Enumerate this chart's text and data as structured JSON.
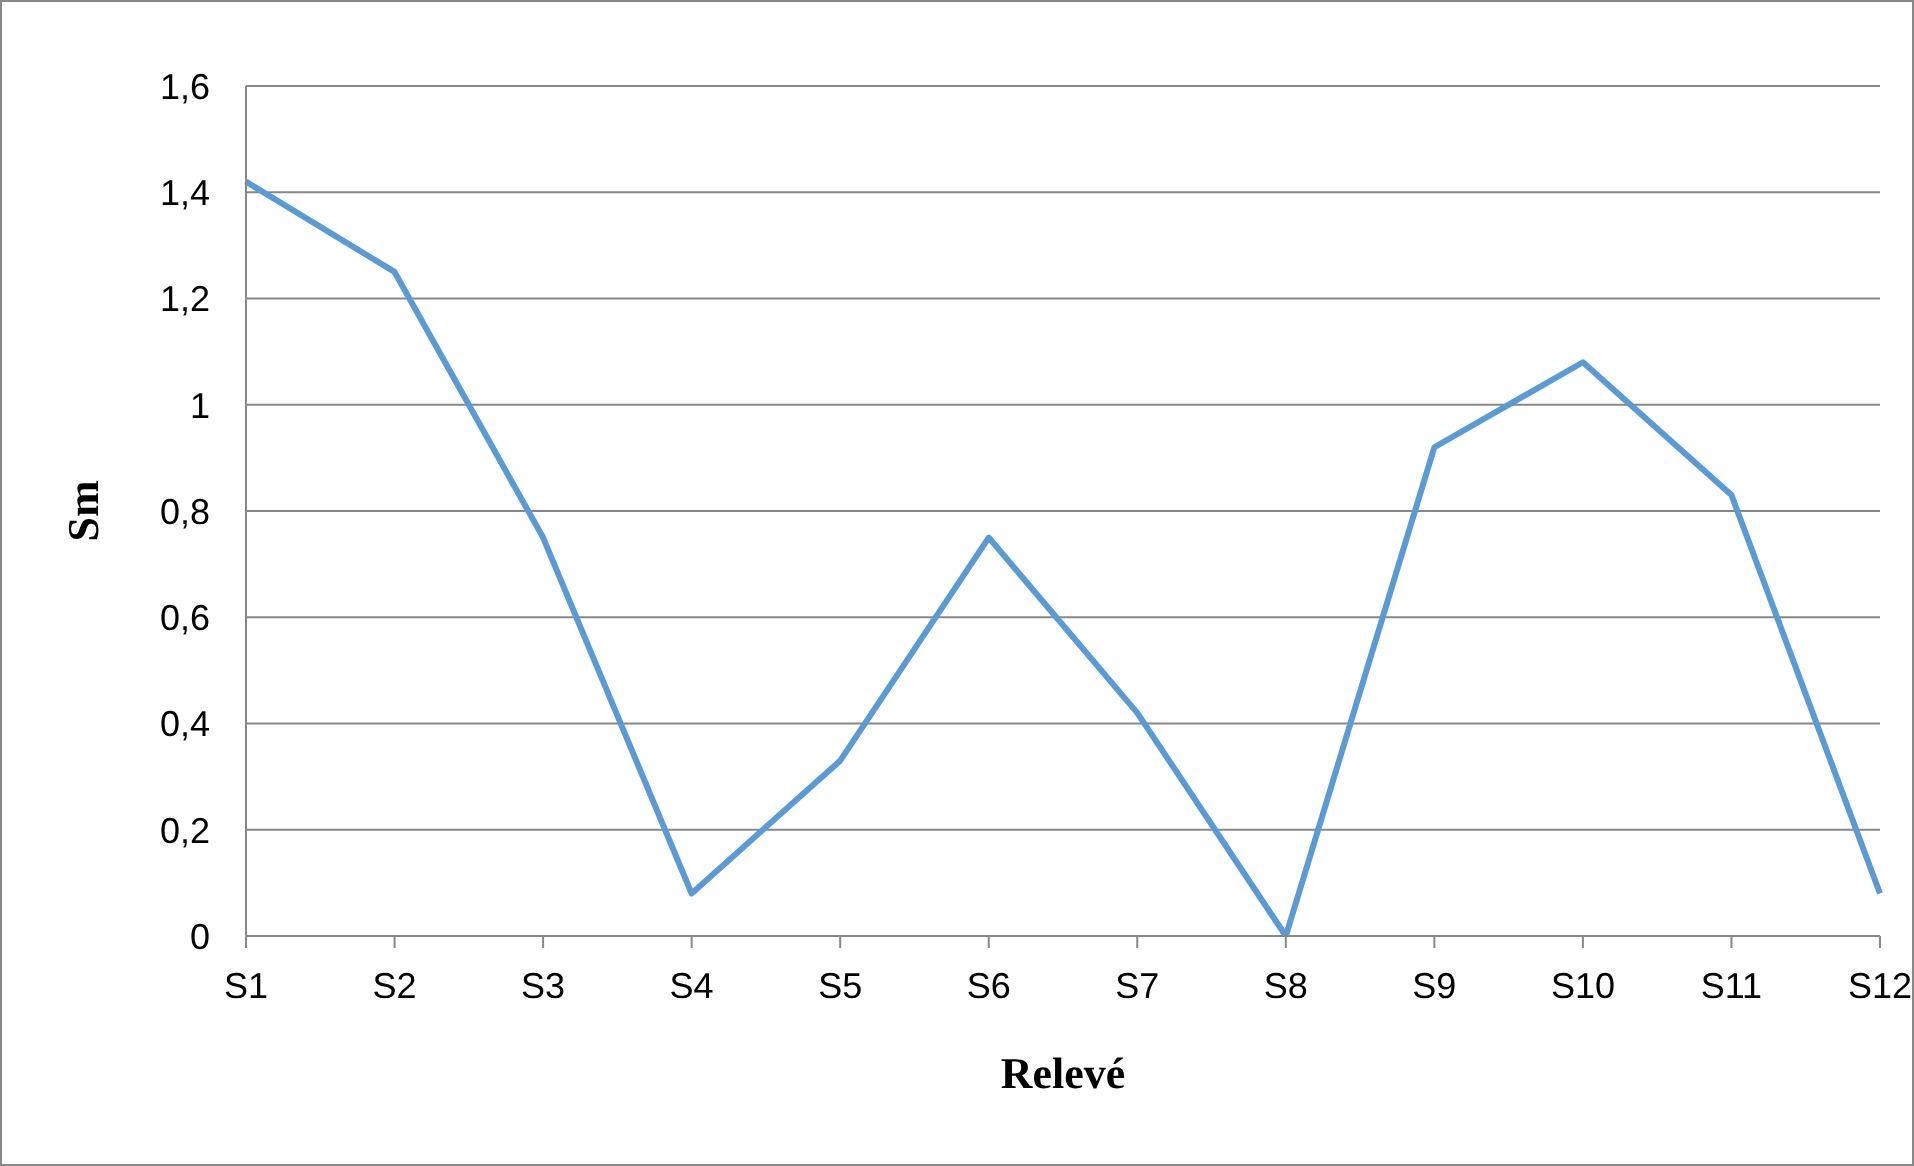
{
  "chart_data": {
    "type": "line",
    "xlabel": "Relevé",
    "ylabel": "Sm",
    "categories": [
      "S1",
      "S2",
      "S3",
      "S4",
      "S5",
      "S6",
      "S7",
      "S8",
      "S9",
      "S10",
      "S11",
      "S12"
    ],
    "series": [
      {
        "color": "#5b9bd5",
        "values": [
          1.42,
          1.25,
          0.75,
          0.08,
          0.33,
          0.75,
          0.42,
          0,
          0.92,
          1.08,
          0.83,
          0.08
        ]
      }
    ],
    "ylim": [
      0,
      1.6
    ],
    "yticks": [
      {
        "value": 0,
        "label": "0"
      },
      {
        "value": 0.2,
        "label": "0,2"
      },
      {
        "value": 0.4,
        "label": "0,4"
      },
      {
        "value": 0.6,
        "label": "0,6"
      },
      {
        "value": 0.8,
        "label": "0,8"
      },
      {
        "value": 1,
        "label": "1"
      },
      {
        "value": 1.2,
        "label": "1,2"
      },
      {
        "value": 1.4,
        "label": "1,4"
      },
      {
        "value": 1.6,
        "label": "1,6"
      }
    ],
    "grid": "y",
    "legend": false,
    "marker": "none",
    "line_style": "solid"
  }
}
